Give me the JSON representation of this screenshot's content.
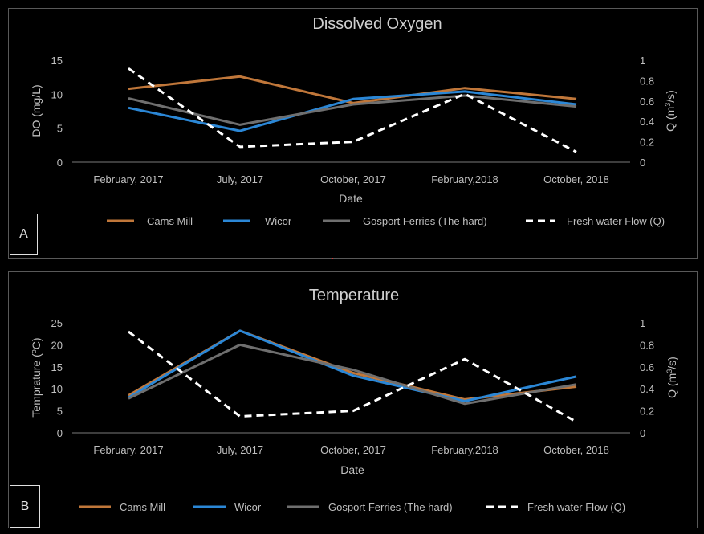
{
  "colors": {
    "cams_mill": "#c0773a",
    "wicor": "#2b87d6",
    "gosport": "#6f6f6f",
    "flow": "#ffffff",
    "axis_text": "#bfbfbf",
    "title_text": "#d0d0d0"
  },
  "chart_data": [
    {
      "id": "A",
      "panel_label": "A",
      "type": "line",
      "title": "Dissolved Oxygen",
      "xlabel": "Date",
      "ylabel": "DO (mg/L)",
      "y2label_prefix": "Q (m",
      "y2label_sup": "3",
      "y2label_suffix": "/s)",
      "categories": [
        "February, 2017",
        "July, 2017",
        "October, 2017",
        "February,2018",
        "October, 2018"
      ],
      "ylim": [
        0,
        15
      ],
      "yticks": [
        "0",
        "5",
        "10",
        "15"
      ],
      "y2lim": [
        0,
        1
      ],
      "y2ticks": [
        "0",
        "0.2",
        "0.4",
        "0.6",
        "0.8",
        "1"
      ],
      "legend_position": "bottom",
      "series": [
        {
          "name": "Cams Mill",
          "axis": "left",
          "style": "solid",
          "color_key": "cams_mill",
          "values": [
            10.8,
            12.6,
            8.7,
            10.9,
            9.3
          ]
        },
        {
          "name": "Wicor",
          "axis": "left",
          "style": "solid",
          "color_key": "wicor",
          "values": [
            8.0,
            4.6,
            9.3,
            10.4,
            8.5
          ]
        },
        {
          "name": "Gosport Ferries (The hard)",
          "axis": "left",
          "style": "solid",
          "color_key": "gosport",
          "values": [
            9.4,
            5.5,
            8.5,
            9.8,
            8.2
          ]
        },
        {
          "name": "Fresh water Flow (Q)",
          "axis": "right",
          "style": "dashed",
          "color_key": "flow",
          "values": [
            0.92,
            0.15,
            0.2,
            0.67,
            0.1
          ]
        }
      ]
    },
    {
      "id": "B",
      "panel_label": "B",
      "type": "line",
      "title": "Temperature",
      "xlabel": "Date",
      "ylabel_prefix": "Temprature (",
      "ylabel_sup": "o",
      "ylabel_suffix": "C)",
      "y2label_prefix": "Q (m",
      "y2label_sup": "3",
      "y2label_suffix": "/s)",
      "categories": [
        "February, 2017",
        "July, 2017",
        "October, 2017",
        "February,2018",
        "October, 2018"
      ],
      "ylim": [
        0,
        25
      ],
      "yticks": [
        "0",
        "5",
        "10",
        "15",
        "20",
        "25"
      ],
      "y2lim": [
        0,
        1
      ],
      "y2ticks": [
        "0",
        "0.2",
        "0.4",
        "0.6",
        "0.8",
        "1"
      ],
      "legend_position": "bottom",
      "series": [
        {
          "name": "Cams Mill",
          "axis": "left",
          "style": "solid",
          "color_key": "cams_mill",
          "values": [
            8.5,
            23.2,
            13.6,
            7.6,
            10.5
          ]
        },
        {
          "name": "Wicor",
          "axis": "left",
          "style": "solid",
          "color_key": "wicor",
          "values": [
            8.0,
            23.2,
            13.0,
            7.2,
            12.8
          ]
        },
        {
          "name": "Gosport Ferries (The hard)",
          "axis": "left",
          "style": "solid",
          "color_key": "gosport",
          "values": [
            7.8,
            20.0,
            14.3,
            6.6,
            11.0
          ]
        },
        {
          "name": "Fresh water Flow (Q)",
          "axis": "right",
          "style": "dashed",
          "color_key": "flow",
          "values": [
            0.92,
            0.15,
            0.2,
            0.67,
            0.1
          ]
        }
      ]
    }
  ]
}
